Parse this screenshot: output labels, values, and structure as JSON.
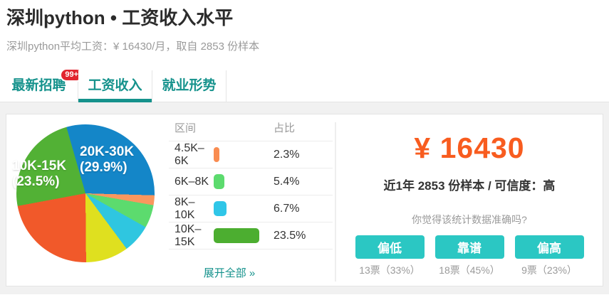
{
  "page": {
    "title": "深圳python • 工资收入水平",
    "subtitle": "深圳python平均工资：¥ 16430/月，取自 2853 份样本"
  },
  "tabs": [
    {
      "label": "最新招聘",
      "badge": "99+"
    },
    {
      "label": "工资收入"
    },
    {
      "label": "就业形势"
    }
  ],
  "colors": {
    "accent": "#15928c",
    "button": "#2bc7c3",
    "amount": "#f85c1f",
    "badge": "#e1242f"
  },
  "chart_data": {
    "type": "pie",
    "start_angle_deg": -16,
    "slices": [
      {
        "label": "20K-30K",
        "value": 29.9,
        "color": "#1486c8"
      },
      {
        "label": "4.5K-6K",
        "value": 2.3,
        "color": "#f9975e"
      },
      {
        "label": "6K-8K",
        "value": 5.4,
        "color": "#5cdb6e"
      },
      {
        "label": "8K-10K",
        "value": 6.7,
        "color": "#2fc6e0"
      },
      {
        "label": "",
        "value": 10.0,
        "color": "#dfe01f"
      },
      {
        "label": "",
        "value": 22.2,
        "color": "#f1592a"
      },
      {
        "label": "10K-15K",
        "value": 23.5,
        "color": "#52b135"
      }
    ],
    "labels_shown": [
      {
        "line1": "20K-30K",
        "line2": "(29.9%)"
      },
      {
        "line1": "10K-15K",
        "line2": "(23.5%)"
      }
    ]
  },
  "table": {
    "headers": [
      "区间",
      "占比"
    ],
    "rows": [
      {
        "range": "4.5K–6K",
        "value": 2.3,
        "percent": "2.3%",
        "color": "#f98c51"
      },
      {
        "range": "6K–8K",
        "value": 5.4,
        "percent": "5.4%",
        "color": "#5cdb6e"
      },
      {
        "range": "8K–10K",
        "value": 6.7,
        "percent": "6.7%",
        "color": "#2fc6e8"
      },
      {
        "range": "10K–15K",
        "value": 23.5,
        "percent": "23.5%",
        "color": "#4cae30"
      }
    ],
    "expand_link": "展开全部 »"
  },
  "salary_panel": {
    "amount": "¥ 16430",
    "sample_info": "近1年 2853 份样本 / 可信度：高",
    "question": "你觉得该统计数据准确吗?",
    "votes": [
      {
        "button": "偏低",
        "count": "13票（33%）"
      },
      {
        "button": "靠谱",
        "count": "18票（45%）"
      },
      {
        "button": "偏高",
        "count": "9票（23%）"
      }
    ]
  }
}
